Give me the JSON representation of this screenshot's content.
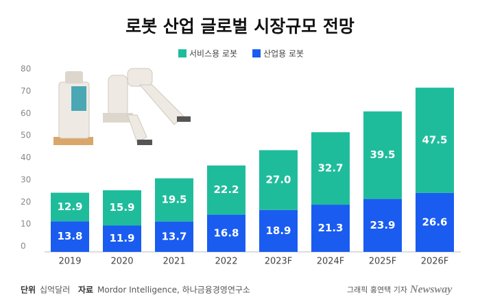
{
  "chart_data": {
    "type": "stacked_bar",
    "title": "로봇 산업 글로벌 시장규모 전망",
    "categories": [
      "2019",
      "2020",
      "2021",
      "2022",
      "2023F",
      "2024F",
      "2025F",
      "2026F"
    ],
    "series": [
      {
        "name": "산업용 로봇",
        "color": "#1a5cf0",
        "values": [
          13.8,
          11.9,
          13.7,
          16.8,
          18.9,
          21.3,
          23.9,
          26.6
        ]
      },
      {
        "name": "서비스용 로봇",
        "color": "#1fbc9c",
        "values": [
          12.9,
          15.9,
          19.5,
          22.2,
          27.0,
          32.7,
          39.5,
          47.5
        ],
        "value_labels": [
          "12.9",
          "15.9",
          "19.5",
          "22.2",
          "27.0",
          "32.7",
          "39.5",
          "47.5"
        ]
      }
    ],
    "legend_order": [
      1,
      0
    ],
    "ylim": [
      0,
      80
    ],
    "yticks": [
      0,
      10,
      20,
      30,
      40,
      50,
      60,
      70,
      80
    ],
    "grid": false
  },
  "footer": {
    "unit_label": "단위",
    "unit": "십억달러",
    "source_label": "자료",
    "source": "Mordor Intelligence, 하나금융경영연구소",
    "credit": "그래픽 홍연택 기자",
    "logo": "Newsway"
  }
}
